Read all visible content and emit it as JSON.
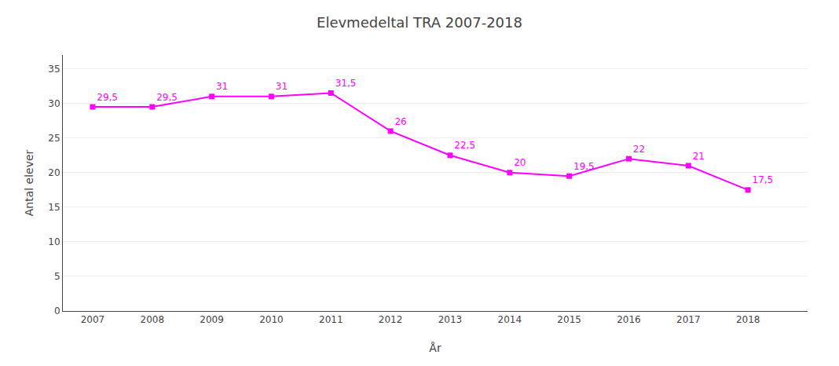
{
  "chart_data": {
    "type": "line",
    "title": "Elevmedeltal TRA 2007-2018",
    "xlabel": "År",
    "ylabel": "Antal elever",
    "x": [
      2007,
      2008,
      2009,
      2010,
      2011,
      2012,
      2013,
      2014,
      2015,
      2016,
      2017,
      2018
    ],
    "values": [
      29.5,
      29.5,
      31.0,
      31.0,
      31.5,
      26.0,
      22.5,
      20.0,
      19.5,
      22.0,
      21.0,
      17.5
    ],
    "value_labels": [
      "29,5",
      "29,5",
      "31",
      "31",
      "31,5",
      "26",
      "22,5",
      "20",
      "19,5",
      "22",
      "21",
      "17,5"
    ],
    "data_labels": true,
    "color": "#FF00FF",
    "marker": "square",
    "xlim": [
      2006.5,
      2019.0
    ],
    "xticks": [
      2007,
      2008,
      2009,
      2010,
      2011,
      2012,
      2013,
      2014,
      2015,
      2016,
      2017,
      2018
    ],
    "ylim": [
      0,
      37
    ],
    "yticks": [
      0,
      5,
      10,
      15,
      20,
      25,
      30,
      35
    ],
    "grid": true
  }
}
